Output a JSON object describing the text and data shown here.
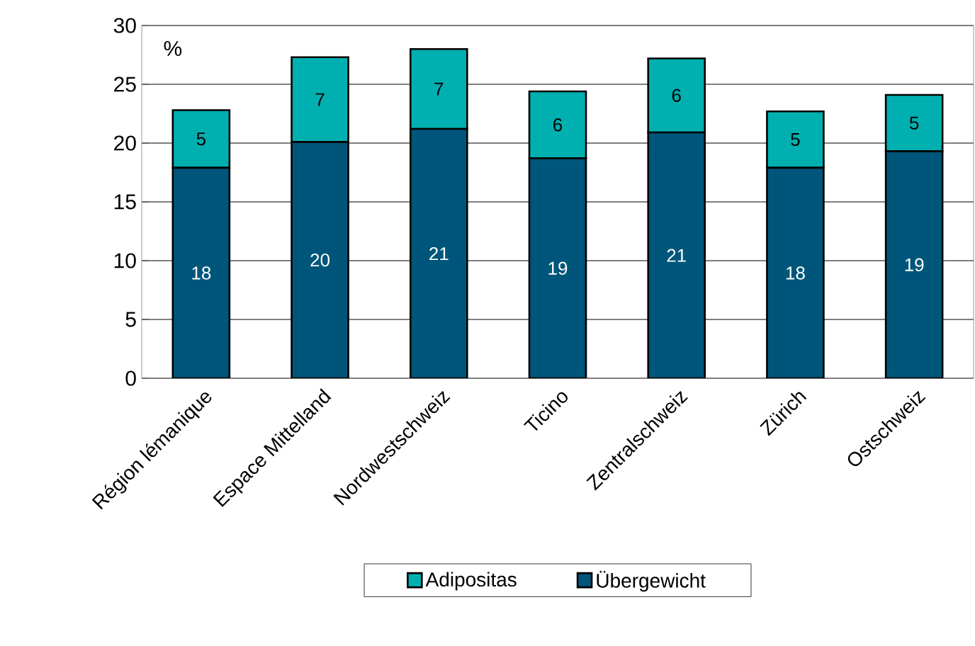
{
  "chart_data": {
    "type": "bar",
    "stacked": true,
    "ylabel": "%",
    "categories": [
      "Région lémanique",
      "Espace Mittelland",
      "Nordwestschweiz",
      "Ticino",
      "Zentralschweiz",
      "Zürich",
      "Ostschweiz"
    ],
    "series": [
      {
        "name": "Übergewicht",
        "color": "#00567a",
        "values": [
          17.9,
          20.1,
          21.2,
          18.7,
          20.9,
          17.9,
          19.3
        ],
        "value_labels": [
          "18",
          "20",
          "21",
          "19",
          "21",
          "18",
          "19"
        ]
      },
      {
        "name": "Adipositas",
        "color": "#00b0b0",
        "values": [
          4.9,
          7.2,
          6.8,
          5.7,
          6.3,
          4.8,
          4.8
        ],
        "value_labels": [
          "5",
          "7",
          "7",
          "6",
          "6",
          "5",
          "5"
        ]
      }
    ],
    "ylim": [
      0,
      30
    ],
    "yticks": [
      0,
      5,
      10,
      15,
      20,
      25,
      30
    ],
    "grid": "y",
    "legend": "bottom"
  }
}
